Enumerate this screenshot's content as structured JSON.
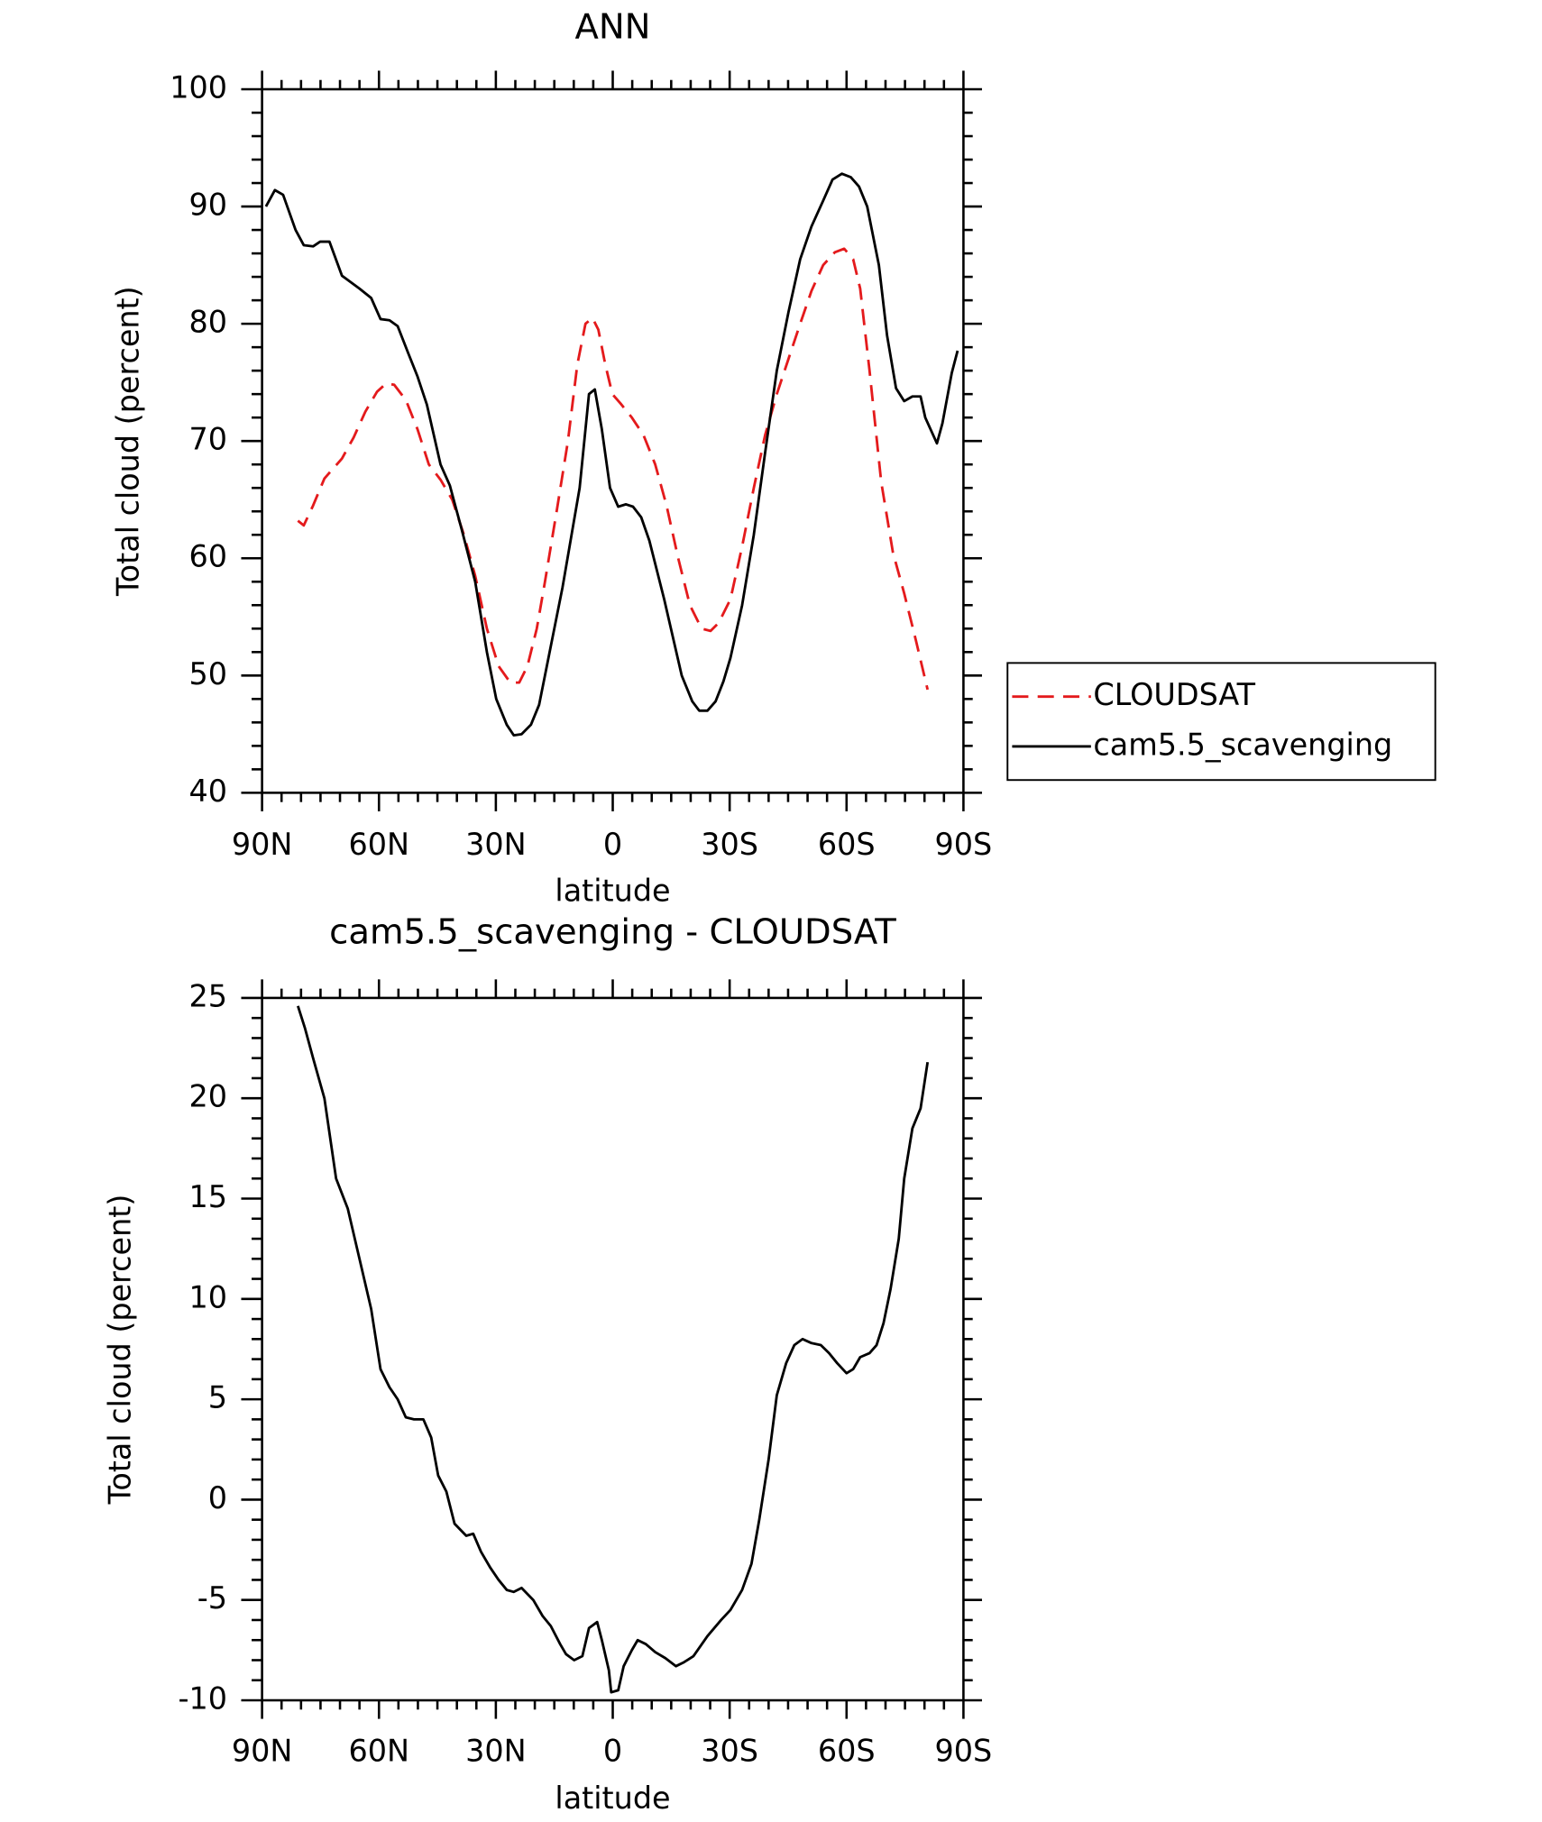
{
  "chart_data": [
    {
      "type": "line",
      "title": "ANN",
      "xlabel": "latitude",
      "ylabel": "Total cloud (percent)",
      "xlim": [
        90,
        -90
      ],
      "ylim": [
        40,
        100
      ],
      "xticks": [
        {
          "value": 90,
          "label": "90N"
        },
        {
          "value": 60,
          "label": "60N"
        },
        {
          "value": 30,
          "label": "30N"
        },
        0,
        {
          "value": -30,
          "label": "30S"
        },
        {
          "value": -60,
          "label": "60S"
        },
        {
          "value": -90,
          "label": "90S"
        }
      ],
      "yticks": [
        40,
        50,
        60,
        70,
        80,
        90,
        100
      ],
      "legend": "right",
      "series": [
        {
          "name": "CLOUDSAT",
          "color": "#e41a1c",
          "linestyle": "dashed",
          "x": [
            80.8,
            79.3,
            76.9,
            74,
            69.5,
            66.5,
            63.5,
            60.5,
            58.2,
            56.1,
            53.1,
            50.1,
            47.2,
            44.2,
            41.2,
            38.2,
            35.3,
            32.3,
            29.3,
            26.3,
            24,
            21.9,
            19.5,
            17.4,
            14.4,
            11.5,
            9.1,
            7,
            5.2,
            3.7,
            1.9,
            0.1,
            -2,
            -4.9,
            -7.9,
            -10.9,
            -13.8,
            -16.8,
            -19.8,
            -22.8,
            -25.1,
            -27.2,
            -30.2,
            -33.2,
            -36.2,
            -39.1,
            -42.1,
            -45.1,
            -48.1,
            -51,
            -54,
            -57,
            -59.4,
            -61.7,
            -63.5,
            -65.9,
            -68.9,
            -71.9,
            -74.8,
            -77.8,
            -80.8
          ],
          "values": [
            63.2,
            62.8,
            64.5,
            66.8,
            68.5,
            70.3,
            72.5,
            74.2,
            74.9,
            74.8,
            73.5,
            71,
            68,
            66.7,
            65,
            62,
            58.5,
            54,
            50.8,
            49.4,
            49.4,
            50.8,
            54,
            58,
            64,
            70,
            76.5,
            80,
            80.5,
            79.5,
            76.5,
            74,
            73.2,
            72,
            70.5,
            68,
            64.5,
            60,
            56,
            54,
            53.8,
            54.5,
            56.5,
            61,
            66,
            70.5,
            74,
            77,
            80,
            82.8,
            85,
            86.1,
            86.4,
            85.5,
            83,
            76,
            66.5,
            60.5,
            57,
            53,
            48.8
          ]
        },
        {
          "name": "cam5.5_scavenging",
          "color": "#000000",
          "linestyle": "solid",
          "x": [
            89,
            86.7,
            84.6,
            81.4,
            79.3,
            76.9,
            75.1,
            72.7,
            69.5,
            65,
            62,
            59.6,
            57.3,
            55.2,
            52.5,
            50.1,
            47.7,
            44.2,
            41.8,
            38.8,
            35.3,
            32.3,
            29.9,
            27.2,
            25.4,
            23.4,
            21,
            18.9,
            17.4,
            12.9,
            8.5,
            6.1,
            4.6,
            2.8,
            0.7,
            -1.4,
            -3.4,
            -5.2,
            -7.3,
            -9.4,
            -13.2,
            -17.7,
            -20.4,
            -22.2,
            -24.3,
            -26.4,
            -28.4,
            -30.2,
            -33.2,
            -36.2,
            -39.1,
            -42.1,
            -45.1,
            -48.1,
            -51,
            -54,
            -56.4,
            -58.8,
            -61.1,
            -63.2,
            -65.3,
            -68.3,
            -70.4,
            -72.7,
            -74.8,
            -76.9,
            -79,
            -80.2,
            -83.2,
            -84.6,
            -87,
            -88.5
          ],
          "values": [
            90,
            91.4,
            91,
            88,
            86.7,
            86.6,
            87,
            87,
            84.1,
            83,
            82.2,
            80.4,
            80.3,
            79.8,
            77.5,
            75.5,
            73.1,
            68,
            66.2,
            62.5,
            58,
            52,
            48,
            45.8,
            44.9,
            45,
            45.8,
            47.5,
            50,
            57.5,
            66,
            74,
            74.4,
            71,
            66,
            64.4,
            64.6,
            64.4,
            63.5,
            61.5,
            56.5,
            50,
            47.8,
            47,
            47,
            47.8,
            49.5,
            51.5,
            56,
            62,
            69,
            76,
            81,
            85.5,
            88.3,
            90.5,
            92.3,
            92.8,
            92.5,
            91.7,
            90,
            85,
            79,
            74.5,
            73.4,
            73.8,
            73.8,
            72,
            69.8,
            71.5,
            75.8,
            77.7
          ]
        }
      ]
    },
    {
      "type": "line",
      "title": "cam5.5_scavenging - CLOUDSAT",
      "xlabel": "latitude",
      "ylabel": "Total cloud (percent)",
      "xlim": [
        90,
        -90
      ],
      "ylim": [
        -10,
        25
      ],
      "xticks": [
        {
          "value": 90,
          "label": "90N"
        },
        {
          "value": 60,
          "label": "60N"
        },
        {
          "value": 30,
          "label": "30N"
        },
        0,
        {
          "value": -30,
          "label": "30S"
        },
        {
          "value": -60,
          "label": "60S"
        },
        {
          "value": -90,
          "label": "90S"
        }
      ],
      "yticks": [
        -10,
        -5,
        0,
        5,
        10,
        15,
        20,
        25
      ],
      "color": "#000000",
      "x": [
        80.8,
        79,
        76.9,
        74,
        71,
        68,
        65,
        62,
        59.6,
        57.3,
        55.2,
        53.1,
        51,
        48.6,
        46.6,
        44.8,
        42.7,
        40.6,
        37.6,
        35.8,
        33.8,
        31.4,
        29.3,
        27.2,
        25.4,
        23.4,
        20.4,
        18,
        15.9,
        13.5,
        12,
        9.9,
        7.8,
        6.1,
        4,
        2.8,
        1,
        0.4,
        -1.4,
        -2.8,
        -4.9,
        -6.4,
        -8.5,
        -10.9,
        -13.5,
        -16.2,
        -18.3,
        -20.7,
        -24.3,
        -27.8,
        -30.2,
        -33.2,
        -35.6,
        -37.6,
        -40,
        -42.1,
        -44.5,
        -46.6,
        -48.7,
        -51,
        -53.4,
        -55.5,
        -57.6,
        -60,
        -61.7,
        -63.5,
        -65.9,
        -67.7,
        -69.5,
        -71.3,
        -73.4,
        -74.8,
        -76.9,
        -79,
        -80.8
      ],
      "values": [
        24.6,
        23.5,
        22,
        20,
        16,
        14.5,
        12,
        9.5,
        6.5,
        5.6,
        5,
        4.1,
        4,
        4,
        3.1,
        1.2,
        0.4,
        -1.2,
        -1.8,
        -1.7,
        -2.6,
        -3.4,
        -4,
        -4.5,
        -4.6,
        -4.4,
        -5,
        -5.8,
        -6.3,
        -7.2,
        -7.7,
        -8,
        -7.8,
        -6.4,
        -6.1,
        -7,
        -8.5,
        -9.6,
        -9.5,
        -8.3,
        -7.5,
        -7,
        -7.2,
        -7.6,
        -7.9,
        -8.3,
        -8.1,
        -7.8,
        -6.8,
        -6,
        -5.5,
        -4.5,
        -3.2,
        -1,
        2,
        5.2,
        6.8,
        7.7,
        8,
        7.8,
        7.7,
        7.3,
        6.8,
        6.3,
        6.5,
        7.1,
        7.3,
        7.7,
        8.8,
        10.5,
        13,
        16,
        18.5,
        19.5,
        21.8
      ]
    }
  ]
}
